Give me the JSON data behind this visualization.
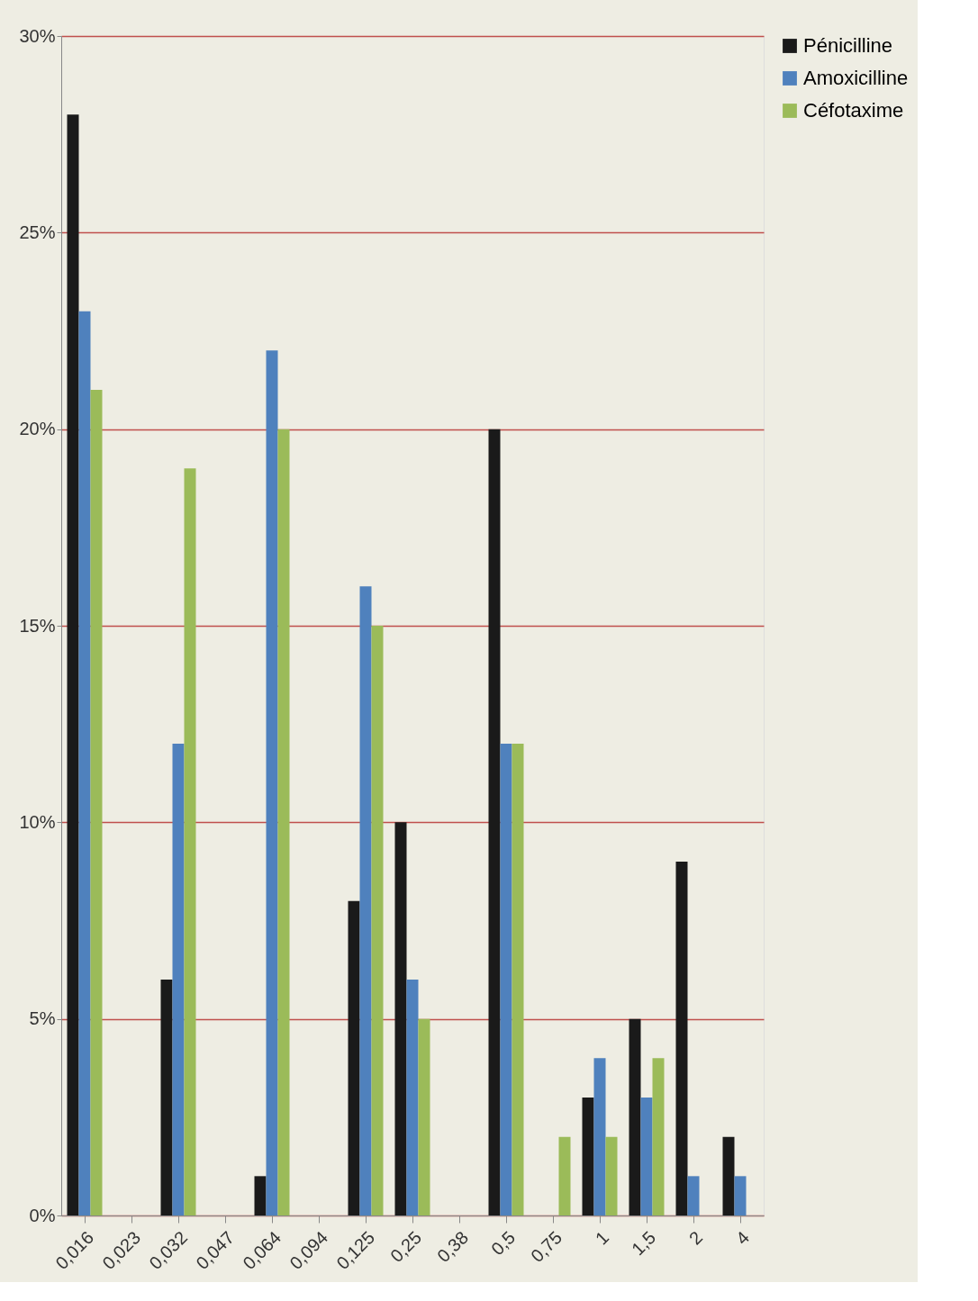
{
  "chart_data": {
    "type": "bar",
    "categories": [
      "0,016",
      "0,023",
      "0,032",
      "0,047",
      "0,064",
      "0,094",
      "0,125",
      "0,25",
      "0,38",
      "0,5",
      "0,75",
      "1",
      "1,5",
      "2",
      "4"
    ],
    "series": [
      {
        "name": "Pénicilline",
        "color": "#1a1a1a",
        "values": [
          28,
          0,
          6,
          0,
          1,
          0,
          8,
          10,
          0,
          20,
          0,
          3,
          5,
          9,
          2
        ]
      },
      {
        "name": "Amoxicilline",
        "color": "#4f81bd",
        "values": [
          23,
          0,
          12,
          0,
          22,
          0,
          16,
          6,
          0,
          12,
          0,
          4,
          3,
          1,
          1
        ]
      },
      {
        "name": "Céfotaxime",
        "color": "#9bbb59",
        "values": [
          21,
          0,
          19,
          0,
          20,
          0,
          15,
          5,
          0,
          12,
          2,
          2,
          4,
          0,
          0
        ]
      }
    ],
    "ylim": [
      0,
      30
    ],
    "yticks": [
      {
        "value": 0,
        "label": "0%"
      },
      {
        "value": 5,
        "label": "5%"
      },
      {
        "value": 10,
        "label": "10%"
      },
      {
        "value": 15,
        "label": "15%"
      },
      {
        "value": 20,
        "label": "20%"
      },
      {
        "value": 25,
        "label": "25%"
      },
      {
        "value": 30,
        "label": "30%"
      }
    ],
    "grid": "y",
    "legend": "right"
  }
}
